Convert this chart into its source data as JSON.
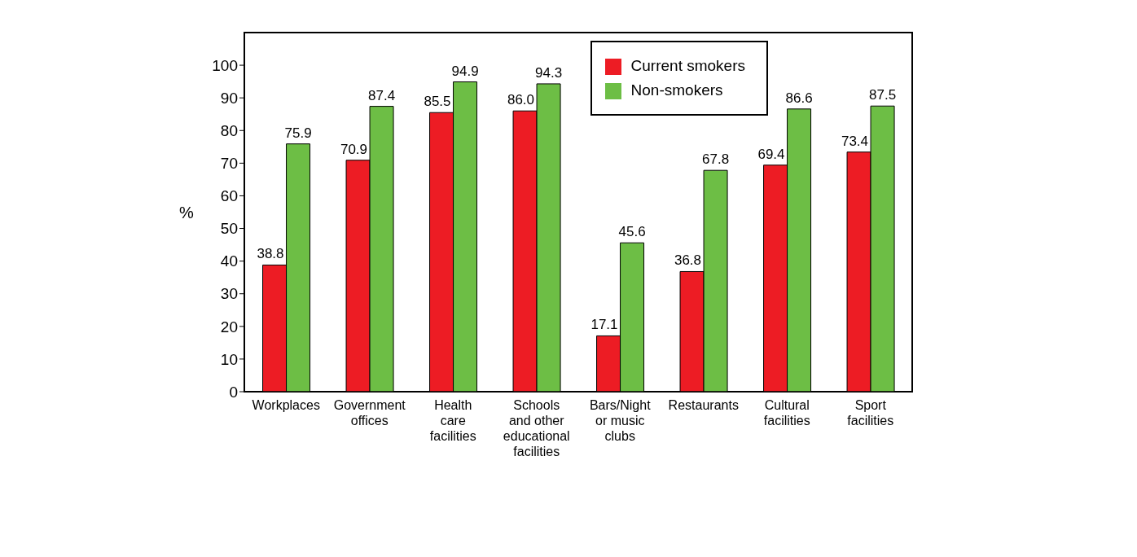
{
  "chart_data": {
    "type": "bar",
    "ylabel": "%",
    "categories": [
      "Workplaces",
      "Government offices",
      "Health care facilities",
      "Schools and other educational facilities",
      "Bars/Night or music clubs",
      "Restaurants",
      "Cultural facilities",
      "Sport facilities"
    ],
    "series": [
      {
        "name": "Current smokers",
        "color": "#ed1c24",
        "values": [
          38.8,
          70.9,
          85.5,
          86.0,
          17.1,
          36.8,
          69.4,
          73.4
        ],
        "value_labels": [
          "38.8",
          "70.9",
          "85.5",
          "86.0",
          "17.1",
          "36.8",
          "69.4",
          "73.4"
        ]
      },
      {
        "name": "Non-smokers",
        "color": "#6dbe45",
        "values": [
          75.9,
          87.4,
          94.9,
          94.3,
          45.6,
          67.8,
          86.6,
          87.5
        ],
        "value_labels": [
          "75.9",
          "87.4",
          "94.9",
          "94.3",
          "45.6",
          "67.8",
          "86.6",
          "87.5"
        ]
      }
    ],
    "ylim": [
      0,
      110
    ],
    "yticks": [
      0,
      10,
      20,
      30,
      40,
      50,
      60,
      70,
      80,
      90,
      100
    ],
    "grid": false,
    "legend": "top right"
  }
}
